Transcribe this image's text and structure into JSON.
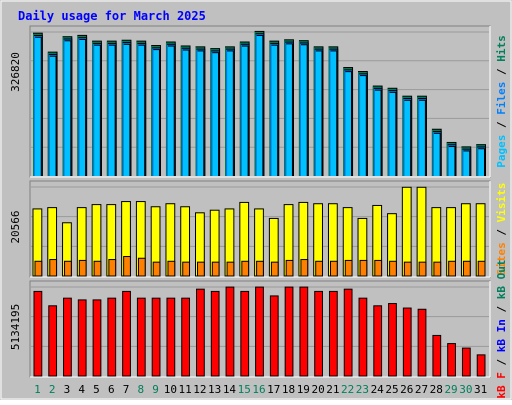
{
  "title": "Daily usage for March 2025",
  "colors": {
    "background": "#c0c0c0",
    "frame_light": "#ffffff",
    "frame_dark": "#808080",
    "title": "#0000ff",
    "grid": "#9a9a9a",
    "axis_text": "#000000",
    "weekend_text": "#00805c",
    "pages": "#00c0ff",
    "files": "#0080ff",
    "hits": "#00805c",
    "visits": "#ffff00",
    "sites": "#ff8000",
    "kb_in": "#0000ff",
    "kb_out": "#00805c",
    "kb_f": "#ff0000",
    "shadow": "#000000"
  },
  "chart_data": [
    {
      "type": "bar",
      "panel": "hits-files-pages",
      "ymax_label": "326820",
      "ylim": [
        0,
        326820
      ],
      "right_label_parts": [
        {
          "text": "Pages",
          "series": "pages"
        },
        {
          "text": " / ",
          "series": "sep"
        },
        {
          "text": "Files",
          "series": "files"
        },
        {
          "text": " / ",
          "series": "sep"
        },
        {
          "text": "Hits",
          "series": "hits"
        }
      ],
      "categories": [
        "1",
        "2",
        "3",
        "4",
        "5",
        "6",
        "7",
        "8",
        "9",
        "10",
        "11",
        "12",
        "13",
        "14",
        "15",
        "16",
        "17",
        "18",
        "19",
        "20",
        "21",
        "22",
        "23",
        "24",
        "25",
        "26",
        "27",
        "28",
        "29",
        "30",
        "31"
      ],
      "series": [
        {
          "name": "Hits",
          "values": [
            323000,
            280000,
            315000,
            318000,
            305000,
            305000,
            307000,
            305000,
            295000,
            303000,
            294000,
            292000,
            288000,
            292000,
            303000,
            327000,
            305000,
            308000,
            306000,
            292000,
            292000,
            245000,
            236000,
            203000,
            198000,
            180000,
            180000,
            105000,
            75000,
            65000,
            70000
          ]
        },
        {
          "name": "Files",
          "values": [
            320000,
            277000,
            312000,
            315000,
            302000,
            302000,
            304000,
            302000,
            292000,
            300000,
            291000,
            289000,
            285000,
            289000,
            300000,
            324000,
            302000,
            305000,
            303000,
            289000,
            289000,
            242000,
            233000,
            200000,
            195000,
            177000,
            177000,
            102000,
            72000,
            62000,
            67000
          ]
        },
        {
          "name": "Pages",
          "values": [
            316000,
            273000,
            308000,
            311000,
            298000,
            298000,
            300000,
            298000,
            288000,
            296000,
            287000,
            285000,
            281000,
            285000,
            296000,
            320000,
            298000,
            301000,
            299000,
            285000,
            285000,
            238000,
            229000,
            196000,
            191000,
            173000,
            173000,
            98000,
            68000,
            58000,
            63000
          ]
        }
      ]
    },
    {
      "type": "bar",
      "panel": "sites-visits",
      "ymax_label": "20566",
      "ylim": [
        0,
        20566
      ],
      "right_label_parts": [
        {
          "text": "Sites",
          "series": "sites"
        },
        {
          "text": " / ",
          "series": "sep"
        },
        {
          "text": "Visits",
          "series": "visits"
        }
      ],
      "categories": [
        "1",
        "2",
        "3",
        "4",
        "5",
        "6",
        "7",
        "8",
        "9",
        "10",
        "11",
        "12",
        "13",
        "14",
        "15",
        "16",
        "17",
        "18",
        "19",
        "20",
        "21",
        "22",
        "23",
        "24",
        "25",
        "26",
        "27",
        "28",
        "29",
        "30",
        "31"
      ],
      "series": [
        {
          "name": "Visits",
          "values": [
            15500,
            15800,
            12300,
            15800,
            16500,
            16500,
            17200,
            17200,
            16000,
            16700,
            16000,
            14600,
            15200,
            15500,
            17000,
            15500,
            13300,
            16500,
            17000,
            16700,
            16700,
            15800,
            13300,
            16300,
            14400,
            20500,
            20500,
            15800,
            15800,
            16700,
            16700
          ]
        },
        {
          "name": "Sites",
          "values": [
            3400,
            3800,
            3400,
            3600,
            3400,
            3800,
            4500,
            4100,
            3200,
            3400,
            3200,
            3200,
            3200,
            3200,
            3400,
            3400,
            3200,
            3600,
            3800,
            3400,
            3400,
            3600,
            3600,
            3600,
            3400,
            3200,
            3200,
            3200,
            3400,
            3400,
            3400
          ]
        }
      ]
    },
    {
      "type": "bar",
      "panel": "kbytes",
      "ymax_label": "5134195",
      "ylim": [
        0,
        5134195
      ],
      "right_label_parts": [
        {
          "text": "kB F",
          "series": "kb_f"
        },
        {
          "text": " / ",
          "series": "sep"
        },
        {
          "text": "kB In",
          "series": "kb_in"
        },
        {
          "text": " / ",
          "series": "sep"
        },
        {
          "text": "kB Out",
          "series": "kb_out"
        }
      ],
      "categories": [
        "1",
        "2",
        "3",
        "4",
        "5",
        "6",
        "7",
        "8",
        "9",
        "10",
        "11",
        "12",
        "13",
        "14",
        "15",
        "16",
        "17",
        "18",
        "19",
        "20",
        "21",
        "22",
        "23",
        "24",
        "25",
        "26",
        "27",
        "28",
        "29",
        "30",
        "31"
      ],
      "series": [
        {
          "name": "kB F",
          "values": [
            4880000,
            4050000,
            4490000,
            4390000,
            4390000,
            4490000,
            4880000,
            4490000,
            4490000,
            4490000,
            4490000,
            5010000,
            4880000,
            5130000,
            4880000,
            5130000,
            4620000,
            5130000,
            5130000,
            4880000,
            4880000,
            5010000,
            4490000,
            4050000,
            4180000,
            3920000,
            3850000,
            2340000,
            1870000,
            1610000,
            1220000
          ]
        },
        {
          "name": "kB In",
          "values": [
            0,
            0,
            0,
            0,
            0,
            0,
            0,
            0,
            0,
            0,
            0,
            0,
            0,
            0,
            0,
            0,
            0,
            0,
            0,
            0,
            0,
            0,
            0,
            0,
            0,
            0,
            0,
            0,
            0,
            0,
            0
          ]
        },
        {
          "name": "kB Out",
          "values": [
            0,
            0,
            0,
            0,
            0,
            0,
            0,
            0,
            0,
            0,
            0,
            0,
            0,
            0,
            0,
            0,
            0,
            0,
            0,
            0,
            0,
            0,
            0,
            0,
            0,
            0,
            0,
            0,
            0,
            0,
            0
          ]
        }
      ]
    }
  ],
  "weekend_days": [
    "1",
    "2",
    "8",
    "9",
    "15",
    "16",
    "22",
    "23",
    "29",
    "30"
  ]
}
